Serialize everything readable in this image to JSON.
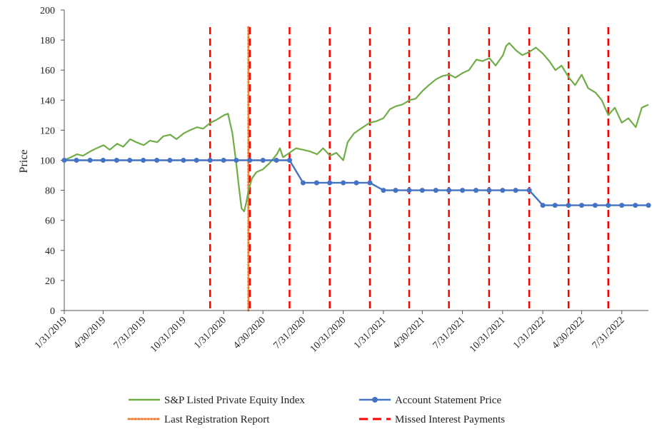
{
  "chart_data": {
    "type": "line",
    "ylabel": "Price",
    "ylim": [
      0,
      200
    ],
    "y_ticks": [
      0,
      20,
      40,
      60,
      80,
      100,
      120,
      140,
      160,
      180,
      200
    ],
    "x_range": [
      "2019-01-31",
      "2022-09-30"
    ],
    "x_tick_labels": [
      {
        "date": "2019-01-31",
        "label": "1/31/2019"
      },
      {
        "date": "2019-04-30",
        "label": "4/30/2019"
      },
      {
        "date": "2019-07-31",
        "label": "7/31/2019"
      },
      {
        "date": "2019-10-31",
        "label": "10/31/2019"
      },
      {
        "date": "2020-01-31",
        "label": "1/31/2020"
      },
      {
        "date": "2020-04-30",
        "label": "4/30/2020"
      },
      {
        "date": "2020-07-31",
        "label": "7/31/2020"
      },
      {
        "date": "2020-10-31",
        "label": "10/31/2020"
      },
      {
        "date": "2021-01-31",
        "label": "1/31/2021"
      },
      {
        "date": "2021-04-30",
        "label": "4/30/2021"
      },
      {
        "date": "2021-07-31",
        "label": "7/31/2021"
      },
      {
        "date": "2021-10-31",
        "label": "10/31/2021"
      },
      {
        "date": "2022-01-31",
        "label": "1/31/2022"
      },
      {
        "date": "2022-04-30",
        "label": "4/30/2022"
      },
      {
        "date": "2022-07-31",
        "label": "7/31/2022"
      }
    ],
    "grid": false,
    "legend_position": "bottom",
    "series": [
      {
        "name": "S&P Listed Private Equity Index",
        "color": "#70ad47",
        "x": [
          "2019-01-31",
          "2019-02-15",
          "2019-03-01",
          "2019-03-15",
          "2019-04-01",
          "2019-04-15",
          "2019-05-01",
          "2019-05-15",
          "2019-06-01",
          "2019-06-15",
          "2019-07-01",
          "2019-07-15",
          "2019-08-01",
          "2019-08-15",
          "2019-09-01",
          "2019-09-15",
          "2019-10-01",
          "2019-10-15",
          "2019-11-01",
          "2019-11-15",
          "2019-12-01",
          "2019-12-15",
          "2020-01-01",
          "2020-01-15",
          "2020-02-01",
          "2020-02-10",
          "2020-02-20",
          "2020-02-28",
          "2020-03-05",
          "2020-03-12",
          "2020-03-18",
          "2020-03-23",
          "2020-03-28",
          "2020-04-05",
          "2020-04-15",
          "2020-04-30",
          "2020-05-15",
          "2020-06-01",
          "2020-06-08",
          "2020-06-15",
          "2020-06-30",
          "2020-07-15",
          "2020-07-31",
          "2020-08-15",
          "2020-09-01",
          "2020-09-15",
          "2020-10-01",
          "2020-10-15",
          "2020-10-31",
          "2020-11-10",
          "2020-11-25",
          "2020-12-15",
          "2020-12-31",
          "2021-01-15",
          "2021-01-31",
          "2021-02-15",
          "2021-03-01",
          "2021-03-15",
          "2021-04-01",
          "2021-04-15",
          "2021-04-30",
          "2021-05-15",
          "2021-06-01",
          "2021-06-15",
          "2021-07-01",
          "2021-07-15",
          "2021-07-31",
          "2021-08-15",
          "2021-09-01",
          "2021-09-15",
          "2021-10-01",
          "2021-10-15",
          "2021-11-01",
          "2021-11-08",
          "2021-11-15",
          "2021-12-01",
          "2021-12-15",
          "2021-12-31",
          "2022-01-15",
          "2022-01-31",
          "2022-02-15",
          "2022-03-01",
          "2022-03-15",
          "2022-04-01",
          "2022-04-15",
          "2022-04-30",
          "2022-05-15",
          "2022-06-01",
          "2022-06-15",
          "2022-06-30",
          "2022-07-15",
          "2022-07-31",
          "2022-08-15",
          "2022-09-01",
          "2022-09-15",
          "2022-09-30"
        ],
        "values": [
          100,
          102,
          104,
          103,
          106,
          108,
          110,
          107,
          111,
          109,
          114,
          112,
          110,
          113,
          112,
          116,
          117,
          114,
          118,
          120,
          122,
          121,
          125,
          127,
          130,
          131,
          118,
          100,
          85,
          68,
          66,
          72,
          80,
          88,
          92,
          94,
          98,
          104,
          108,
          102,
          105,
          108,
          107,
          106,
          104,
          108,
          103,
          105,
          100,
          112,
          118,
          122,
          125,
          126,
          128,
          134,
          136,
          137,
          140,
          141,
          146,
          150,
          154,
          156,
          157,
          155,
          158,
          160,
          167,
          166,
          168,
          163,
          170,
          176,
          178,
          173,
          170,
          172,
          175,
          171,
          166,
          160,
          163,
          155,
          150,
          157,
          148,
          145,
          140,
          130,
          135,
          125,
          128,
          122,
          135,
          137
        ]
      },
      {
        "name": "Account Statement Price",
        "color": "#4472c4",
        "x": [
          "2019-01-31",
          "2019-02-28",
          "2019-03-31",
          "2019-04-30",
          "2019-05-31",
          "2019-06-30",
          "2019-07-31",
          "2019-08-31",
          "2019-09-30",
          "2019-10-31",
          "2019-11-30",
          "2019-12-31",
          "2020-01-31",
          "2020-02-29",
          "2020-03-31",
          "2020-04-30",
          "2020-05-31",
          "2020-06-30",
          "2020-07-31",
          "2020-08-31",
          "2020-09-30",
          "2020-10-31",
          "2020-11-30",
          "2020-12-31",
          "2021-01-31",
          "2021-02-28",
          "2021-03-31",
          "2021-04-30",
          "2021-05-31",
          "2021-06-30",
          "2021-07-31",
          "2021-08-31",
          "2021-09-30",
          "2021-10-31",
          "2021-11-30",
          "2021-12-31",
          "2022-01-31",
          "2022-02-28",
          "2022-03-31",
          "2022-04-30",
          "2022-05-31",
          "2022-06-30",
          "2022-07-31",
          "2022-08-31",
          "2022-09-30"
        ],
        "values": [
          100,
          100,
          100,
          100,
          100,
          100,
          100,
          100,
          100,
          100,
          100,
          100,
          100,
          100,
          100,
          100,
          100,
          100,
          85,
          85,
          85,
          85,
          85,
          85,
          80,
          80,
          80,
          80,
          80,
          80,
          80,
          80,
          80,
          80,
          80,
          80,
          70,
          70,
          70,
          70,
          70,
          70,
          70,
          70,
          70
        ]
      }
    ],
    "vertical_lines": [
      {
        "series": "Last Registration Report",
        "color": "#ed7d31",
        "style": "dotted",
        "dates": [
          "2020-03-31"
        ]
      },
      {
        "series": "Missed Interest Payments",
        "color": "#ff0000",
        "style": "dashed",
        "dates": [
          "2019-12-31",
          "2020-03-31",
          "2020-06-30",
          "2020-09-30",
          "2020-12-31",
          "2021-03-31",
          "2021-06-30",
          "2021-09-30",
          "2021-12-31",
          "2022-03-31",
          "2022-06-30"
        ]
      }
    ],
    "legend": [
      {
        "label": "S&P Listed Private Equity Index",
        "kind": "line",
        "color": "#70ad47"
      },
      {
        "label": "Account Statement Price",
        "kind": "line-marker",
        "color": "#4472c4"
      },
      {
        "label": "Last Registration Report",
        "kind": "dotted",
        "color": "#ed7d31"
      },
      {
        "label": "Missed Interest Payments",
        "kind": "dashed",
        "color": "#ff0000"
      }
    ]
  }
}
